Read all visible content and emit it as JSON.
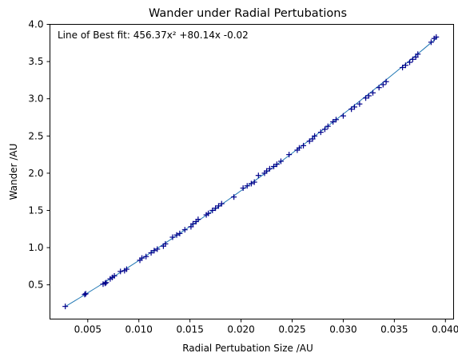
{
  "chart_data": {
    "type": "scatter",
    "title": "Wander under Radial Pertubations",
    "xlabel": "Radial Pertubation Size /AU",
    "ylabel": "Wander /AU",
    "annotation": "Line of Best fit: 456.37x² +80.14x -0.02",
    "xlim": [
      0.0013,
      0.0408
    ],
    "ylim": [
      0.04,
      4.0
    ],
    "xticks": [
      "0.005",
      "0.010",
      "0.015",
      "0.020",
      "0.025",
      "0.030",
      "0.035",
      "0.040"
    ],
    "yticks": [
      "0.5",
      "1.0",
      "1.5",
      "2.0",
      "2.5",
      "3.0",
      "3.5",
      "4.0"
    ],
    "grid": false,
    "marker_color": "#00008b",
    "fit_color": "#1f77b4",
    "fit": {
      "a": 456.37,
      "b": 80.14,
      "c": -0.02,
      "x_range": [
        0.0028,
        0.0392
      ]
    },
    "series": [
      {
        "x": [
          0.0028,
          0.0047,
          0.0048,
          0.0065,
          0.0067,
          0.0068,
          0.0072,
          0.0074,
          0.0076,
          0.0082,
          0.0086,
          0.0088,
          0.0101,
          0.0103,
          0.0107,
          0.0112,
          0.0115,
          0.0118,
          0.0124,
          0.0126,
          0.0133,
          0.0137,
          0.014,
          0.0145,
          0.0151,
          0.0153,
          0.0156,
          0.0158,
          0.0166,
          0.0168,
          0.0172,
          0.0175,
          0.0178,
          0.0181,
          0.0193,
          0.0202,
          0.0206,
          0.021,
          0.0213,
          0.0217,
          0.0223,
          0.0225,
          0.0228,
          0.0232,
          0.0235,
          0.0239,
          0.0247,
          0.0255,
          0.0257,
          0.0261,
          0.0267,
          0.027,
          0.0272,
          0.0278,
          0.0282,
          0.0285,
          0.029,
          0.0293,
          0.03,
          0.0308,
          0.0311,
          0.0316,
          0.0322,
          0.0325,
          0.0329,
          0.0335,
          0.0339,
          0.0342,
          0.0358,
          0.0361,
          0.0365,
          0.0368,
          0.0371,
          0.0373,
          0.0386,
          0.0389,
          0.0391
        ],
        "y": [
          0.21,
          0.37,
          0.38,
          0.51,
          0.52,
          0.53,
          0.58,
          0.6,
          0.62,
          0.68,
          0.69,
          0.71,
          0.83,
          0.86,
          0.88,
          0.93,
          0.96,
          0.98,
          1.02,
          1.05,
          1.14,
          1.17,
          1.19,
          1.24,
          1.28,
          1.32,
          1.35,
          1.38,
          1.44,
          1.46,
          1.5,
          1.53,
          1.56,
          1.59,
          1.68,
          1.8,
          1.83,
          1.86,
          1.88,
          1.97,
          2.0,
          2.03,
          2.06,
          2.09,
          2.12,
          2.16,
          2.25,
          2.31,
          2.34,
          2.37,
          2.43,
          2.46,
          2.5,
          2.55,
          2.59,
          2.63,
          2.69,
          2.72,
          2.77,
          2.86,
          2.89,
          2.93,
          3.01,
          3.04,
          3.08,
          3.15,
          3.19,
          3.23,
          3.42,
          3.45,
          3.49,
          3.53,
          3.56,
          3.6,
          3.76,
          3.81,
          3.83
        ]
      }
    ]
  }
}
